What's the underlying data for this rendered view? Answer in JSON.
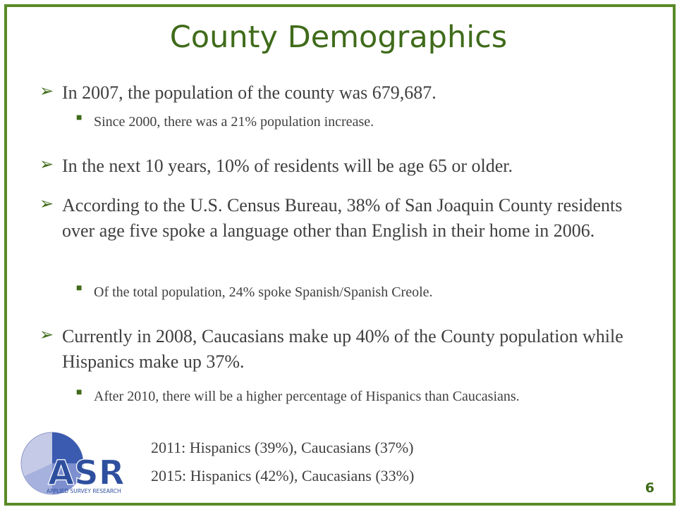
{
  "title": "County Demographics",
  "bullets": {
    "b1": "In 2007, the population of the county was 679,687.",
    "b1_sub": "Since 2000, there was a 21% population increase.",
    "b2": "In the next 10 years, 10% of residents will be age 65 or older.",
    "b3": "According to the U.S. Census Bureau, 38% of San Joaquin County residents over age five spoke a language other than English in their home in 2006.",
    "b3_sub": "Of the total population, 24% spoke Spanish/Spanish Creole.",
    "b4": "Currently in 2008, Caucasians make up 40% of the County population while Hispanics make up 37%.",
    "b4_sub": "After 2010, there will be a higher percentage of Hispanics than Caucasians.",
    "line_2011": "2011: Hispanics  (39%), Caucasians (37%)",
    "line_2015": "2015: Hispanics  (42%), Caucasians (33%)"
  },
  "logo": {
    "letters": "ASR",
    "tagline": "APPLIED SURVEY RESEARCH"
  },
  "page_number": "6",
  "colors": {
    "border": "#5a8a26",
    "title": "#3f6b1a",
    "text": "#3f3f3f",
    "logo_blue": "#2e4f9e"
  }
}
